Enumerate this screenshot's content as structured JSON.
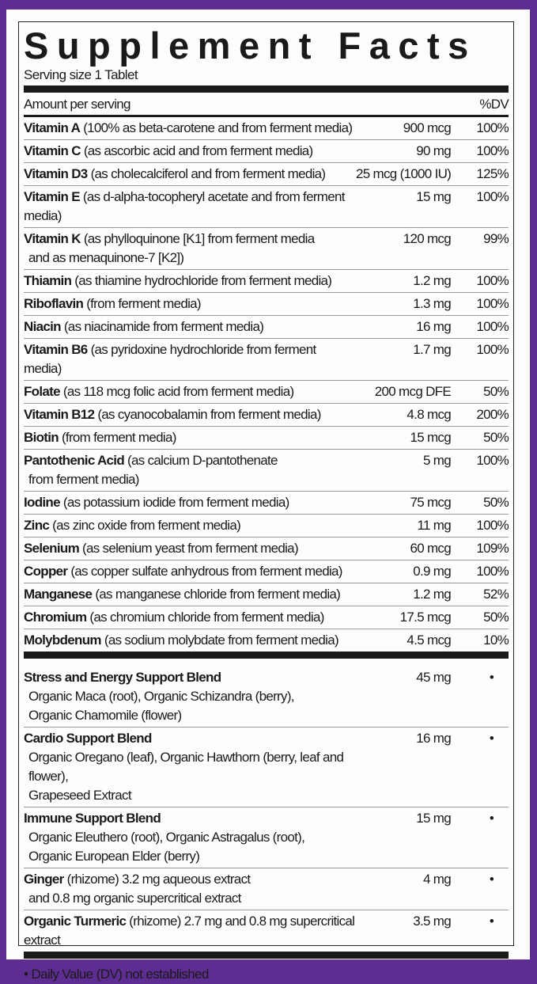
{
  "title": "Supplement Facts",
  "serving_size": "Serving size 1 Tablet",
  "header": {
    "amount": "Amount per serving",
    "dv": "%DV"
  },
  "nutrients": [
    {
      "name": "Vitamin A",
      "detail": " (100% as beta-carotene and from ferment media)",
      "detail2": "",
      "amount": "900 mcg",
      "dv": "100%"
    },
    {
      "name": "Vitamin C",
      "detail": " (as ascorbic acid and from ferment media)",
      "detail2": "",
      "amount": "90 mg",
      "dv": "100%"
    },
    {
      "name": "Vitamin D3",
      "detail": " (as cholecalciferol and from ferment media)",
      "detail2": "",
      "amount": "25 mcg (1000 IU)",
      "dv": "125%"
    },
    {
      "name": "Vitamin E",
      "detail": " (as d-alpha-tocopheryl acetate and from ferment media)",
      "detail2": "",
      "amount": "15 mg",
      "dv": "100%"
    },
    {
      "name": "Vitamin K",
      "detail": " (as phylloquinone [K1] from ferment media",
      "detail2": "and as menaquinone-7 [K2])",
      "amount": "120 mcg",
      "dv": "99%"
    },
    {
      "name": "Thiamin",
      "detail": " (as thiamine hydrochloride from ferment media)",
      "detail2": "",
      "amount": "1.2 mg",
      "dv": "100%"
    },
    {
      "name": "Riboflavin",
      "detail": " (from ferment media)",
      "detail2": "",
      "amount": "1.3 mg",
      "dv": "100%"
    },
    {
      "name": "Niacin",
      "detail": " (as niacinamide from ferment media)",
      "detail2": "",
      "amount": "16 mg",
      "dv": "100%"
    },
    {
      "name": "Vitamin B6",
      "detail": " (as pyridoxine hydrochloride from ferment media)",
      "detail2": "",
      "amount": "1.7 mg",
      "dv": "100%"
    },
    {
      "name": "Folate",
      "detail": " (as 118 mcg folic acid from ferment media)",
      "detail2": "",
      "amount": "200 mcg DFE",
      "dv": "50%"
    },
    {
      "name": "Vitamin B12",
      "detail": " (as cyanocobalamin from ferment media)",
      "detail2": "",
      "amount": "4.8 mcg",
      "dv": "200%"
    },
    {
      "name": "Biotin",
      "detail": " (from ferment media)",
      "detail2": "",
      "amount": "15 mcg",
      "dv": "50%"
    },
    {
      "name": "Pantothenic Acid",
      "detail": " (as calcium D-pantothenate",
      "detail2": "from ferment media)",
      "amount": "5 mg",
      "dv": "100%"
    },
    {
      "name": "Iodine",
      "detail": " (as potassium iodide from ferment media)",
      "detail2": "",
      "amount": "75 mcg",
      "dv": "50%"
    },
    {
      "name": "Zinc",
      "detail": " (as zinc oxide from ferment media)",
      "detail2": "",
      "amount": "11 mg",
      "dv": "100%"
    },
    {
      "name": "Selenium",
      "detail": " (as selenium yeast from ferment media)",
      "detail2": "",
      "amount": "60 mcg",
      "dv": "109%"
    },
    {
      "name": "Copper",
      "detail": " (as copper sulfate anhydrous from ferment media)",
      "detail2": "",
      "amount": "0.9 mg",
      "dv": "100%"
    },
    {
      "name": "Manganese",
      "detail": " (as manganese chloride from ferment media)",
      "detail2": "",
      "amount": "1.2 mg",
      "dv": "52%"
    },
    {
      "name": "Chromium",
      "detail": " (as chromium chloride from ferment media)",
      "detail2": "",
      "amount": "17.5 mcg",
      "dv": "50%"
    },
    {
      "name": "Molybdenum",
      "detail": " (as sodium molybdate from ferment media)",
      "detail2": "",
      "amount": "4.5 mcg",
      "dv": "10%"
    }
  ],
  "blends": [
    {
      "name": "Stress and Energy Support Blend",
      "detail": "",
      "line2": "Organic Maca (root), Organic Schizandra (berry),",
      "line3": "Organic Chamomile (flower)",
      "amount": "45 mg",
      "dv": "•"
    },
    {
      "name": "Cardio Support Blend",
      "detail": "",
      "line2": "Organic Oregano (leaf), Organic Hawthorn (berry, leaf and flower),",
      "line3": "Grapeseed Extract",
      "amount": "16 mg",
      "dv": "•"
    },
    {
      "name": "Immune Support Blend",
      "detail": "",
      "line2": "Organic Eleuthero (root), Organic Astragalus (root),",
      "line3": "Organic European Elder (berry)",
      "amount": "15 mg",
      "dv": "•"
    },
    {
      "name": "Ginger",
      "detail": " (rhizome) 3.2 mg aqueous extract",
      "line2": "and 0.8 mg organic supercritical extract",
      "line3": "",
      "amount": "4 mg",
      "dv": "•"
    },
    {
      "name": "Organic Turmeric",
      "detail": " (rhizome) 2.7 mg and 0.8 mg supercritical extract",
      "line2": "",
      "line3": "",
      "amount": "3.5 mg",
      "dv": "•"
    }
  ],
  "footnote": "• Daily Value (DV) not established",
  "colors": {
    "border": "#5e2d91",
    "text": "#1a1a1a"
  }
}
